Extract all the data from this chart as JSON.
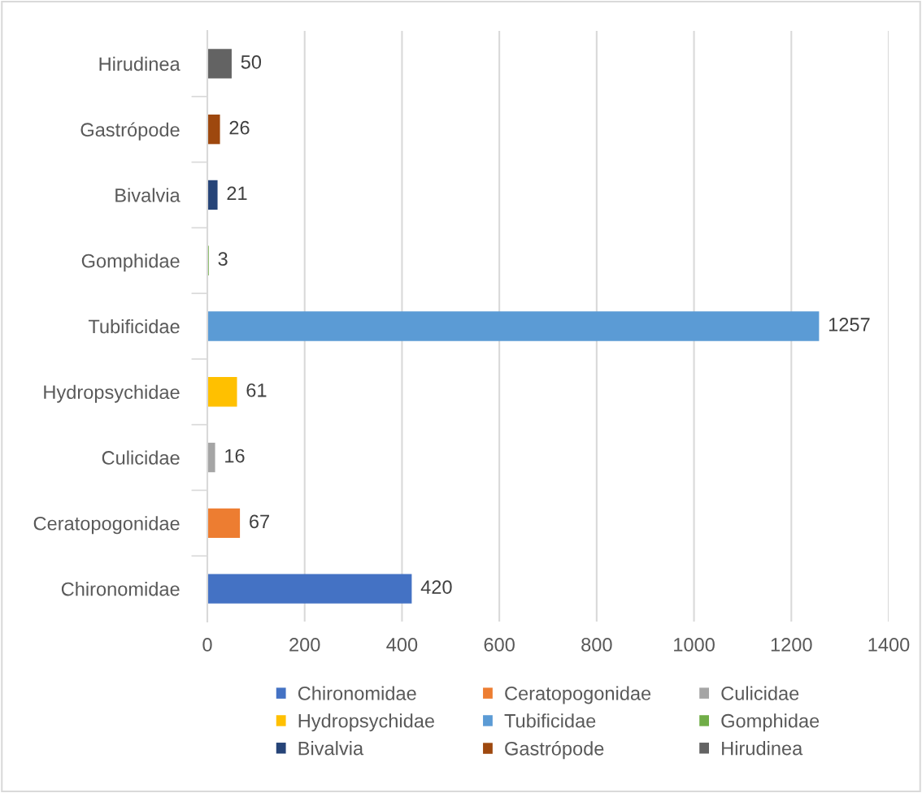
{
  "chart_data": {
    "type": "bar",
    "orientation": "horizontal",
    "categories": [
      "Hirudinea",
      "Gastrópode",
      "Bivalvia",
      "Gomphidae",
      "Tubificidae",
      "Hydropsychidae",
      "Culicidae",
      "Ceratopogonidae",
      "Chironomidae"
    ],
    "series": [
      {
        "name": "Chironomidae",
        "color": "#4472c4",
        "values": [
          null,
          null,
          null,
          null,
          null,
          null,
          null,
          null,
          420
        ]
      },
      {
        "name": "Ceratopogonidae",
        "color": "#ed7d31",
        "values": [
          null,
          null,
          null,
          null,
          null,
          null,
          null,
          67,
          null
        ]
      },
      {
        "name": "Culicidae",
        "color": "#a5a5a5",
        "values": [
          null,
          null,
          null,
          null,
          null,
          null,
          16,
          null,
          null
        ]
      },
      {
        "name": "Hydropsychidae",
        "color": "#ffc000",
        "values": [
          null,
          null,
          null,
          null,
          null,
          61,
          null,
          null,
          null
        ]
      },
      {
        "name": "Tubificidae",
        "color": "#5b9bd5",
        "values": [
          null,
          null,
          null,
          null,
          1257,
          null,
          null,
          null,
          null
        ]
      },
      {
        "name": "Gomphidae",
        "color": "#70ad47",
        "values": [
          null,
          null,
          null,
          3,
          null,
          null,
          null,
          null,
          null
        ]
      },
      {
        "name": "Bivalvia",
        "color": "#264478",
        "values": [
          null,
          null,
          21,
          null,
          null,
          null,
          null,
          null,
          null
        ]
      },
      {
        "name": "Gastrópode",
        "color": "#9e480e",
        "values": [
          null,
          26,
          null,
          null,
          null,
          null,
          null,
          null,
          null
        ]
      },
      {
        "name": "Hirudinea",
        "color": "#636363",
        "values": [
          50,
          null,
          null,
          null,
          null,
          null,
          null,
          null,
          null
        ]
      }
    ],
    "stacked": true,
    "xlim": [
      0,
      1400
    ],
    "xticks": [
      0,
      200,
      400,
      600,
      800,
      1000,
      1200,
      1400
    ],
    "grid": "x",
    "legend": "bottom",
    "data_labels": true
  }
}
